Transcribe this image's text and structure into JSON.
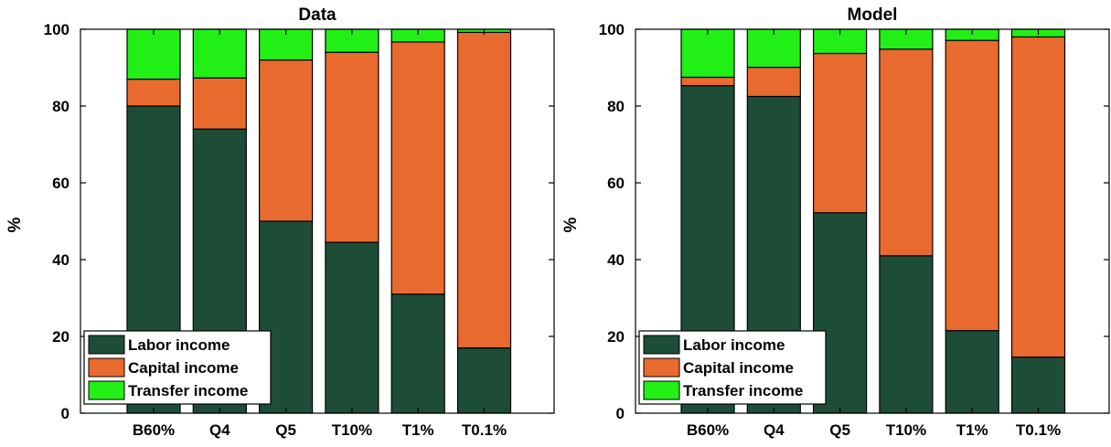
{
  "chart_data": [
    {
      "type": "bar",
      "stacked": true,
      "title": "Data",
      "xlabel": "",
      "ylabel": "%",
      "ylim": [
        0,
        100
      ],
      "yticks": [
        0,
        20,
        40,
        60,
        80,
        100
      ],
      "categories": [
        "B60%",
        "Q4",
        "Q5",
        "T10%",
        "T1%",
        "T0.1%"
      ],
      "series": [
        {
          "name": "Labor income",
          "values": [
            80,
            74,
            50,
            44.5,
            31,
            17
          ]
        },
        {
          "name": "Capital income",
          "values": [
            7,
            13.3,
            42,
            49.5,
            65.7,
            82.2
          ]
        },
        {
          "name": "Transfer income",
          "values": [
            13,
            12.7,
            8,
            6,
            3.3,
            0.8
          ]
        }
      ],
      "legend_position": "bottom-left",
      "grid": false
    },
    {
      "type": "bar",
      "stacked": true,
      "title": "Model",
      "xlabel": "",
      "ylabel": "%",
      "ylim": [
        0,
        100
      ],
      "yticks": [
        0,
        20,
        40,
        60,
        80,
        100
      ],
      "categories": [
        "B60%",
        "Q4",
        "Q5",
        "T10%",
        "T1%",
        "T0.1%"
      ],
      "series": [
        {
          "name": "Labor income",
          "values": [
            85.3,
            82.5,
            52.2,
            41,
            21.5,
            14.6
          ]
        },
        {
          "name": "Capital income",
          "values": [
            2.2,
            7.6,
            41.5,
            53.8,
            75.6,
            83.4
          ]
        },
        {
          "name": "Transfer income",
          "values": [
            12.5,
            9.9,
            6.3,
            5.2,
            2.9,
            2
          ]
        }
      ],
      "legend_position": "bottom-left",
      "grid": false
    }
  ],
  "colors": {
    "Labor income": "#1e4d37",
    "Capital income": "#e96a2f",
    "Transfer income": "#22ef16",
    "axis": "#000000",
    "background": "#ffffff"
  }
}
